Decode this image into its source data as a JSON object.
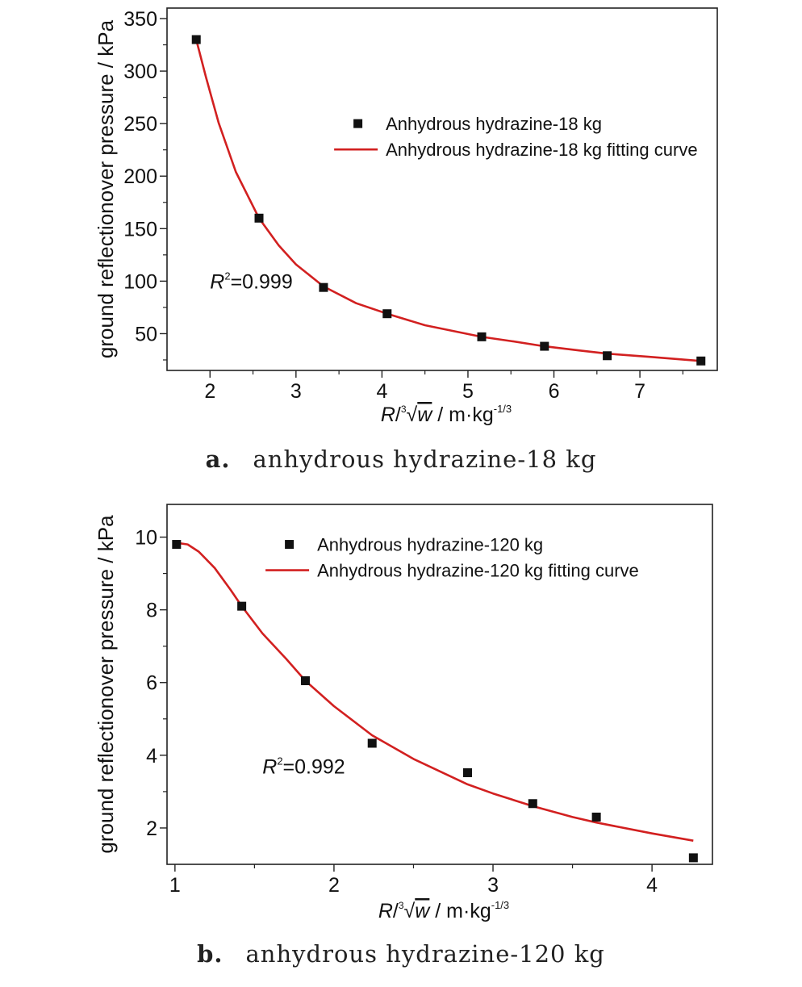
{
  "chart_data": [
    {
      "id": "a",
      "type": "scatter",
      "caption_tag": "a.",
      "caption_text": "anhydrous hydrazine-18 kg",
      "xlabel": "R/∛w / m·kg-1/3",
      "xlabel_parts": {
        "r": "R",
        "slash": "/",
        "root_index": "3",
        "w": "w",
        "unit": " / m·kg",
        "exp": "-1/3"
      },
      "ylabel": "ground reflectionover pressure / kPa",
      "xlim": [
        1.5,
        7.9
      ],
      "ylim": [
        15,
        360
      ],
      "xticks": [
        2,
        3,
        4,
        5,
        6,
        7
      ],
      "xticks_minor": [
        2.5,
        3.5,
        4.5,
        5.5,
        6.5,
        7.5
      ],
      "yticks": [
        50,
        100,
        150,
        200,
        250,
        300,
        350
      ],
      "yticks_minor": [
        25,
        75,
        125,
        175,
        225,
        275,
        325
      ],
      "annotation": {
        "r": "R",
        "sup": "2",
        "rest": "=0.999"
      },
      "annotation_pos": {
        "x": 2.0,
        "y": 93
      },
      "legend_pos": {
        "x": 3.5,
        "y": 250
      },
      "legend": {
        "points": "Anhydrous hydrazine-18 kg",
        "curve": "Anhydrous hydrazine-18 kg fitting curve"
      },
      "series": [
        {
          "name": "Anhydrous hydrazine-18 kg",
          "kind": "points",
          "x": [
            1.84,
            2.57,
            3.32,
            4.06,
            5.16,
            5.89,
            6.62,
            7.71
          ],
          "y": [
            330,
            160,
            94,
            69,
            47,
            38,
            29,
            24
          ]
        },
        {
          "name": "Anhydrous hydrazine-18 kg fitting curve",
          "kind": "line",
          "x": [
            1.84,
            1.95,
            2.1,
            2.3,
            2.57,
            2.8,
            3.0,
            3.32,
            3.7,
            4.06,
            4.5,
            5.16,
            5.5,
            5.89,
            6.3,
            6.62,
            7.1,
            7.71
          ],
          "y": [
            330,
            295,
            251,
            204,
            160,
            134,
            116,
            95,
            79,
            69,
            58,
            47,
            43,
            38,
            34,
            31,
            28,
            24
          ]
        }
      ],
      "colors": {
        "points": "#111111",
        "curve": "#d22020"
      }
    },
    {
      "id": "b",
      "type": "scatter",
      "caption_tag": "b.",
      "caption_text": "anhydrous hydrazine-120 kg",
      "xlabel": "R/∛w / m·kg-1/3",
      "xlabel_parts": {
        "r": "R",
        "slash": "/",
        "root_index": "3",
        "w": "w",
        "unit": " / m·kg",
        "exp": "-1/3"
      },
      "ylabel": "ground reflectionover pressure / kPa",
      "xlim": [
        0.95,
        4.38
      ],
      "ylim": [
        1.0,
        10.9
      ],
      "xticks": [
        1,
        2,
        3,
        4
      ],
      "xticks_minor": [
        1.5,
        2.5,
        3.5
      ],
      "yticks": [
        2,
        4,
        6,
        8,
        10
      ],
      "yticks_minor": [
        3,
        5,
        7,
        9
      ],
      "annotation": {
        "r": "R",
        "sup": "2",
        "rest": "=0.992"
      },
      "annotation_pos": {
        "x": 1.55,
        "y": 3.5
      },
      "legend_pos": {
        "x": 1.6,
        "y": 9.8
      },
      "legend": {
        "points": "Anhydrous hydrazine-120 kg",
        "curve": "Anhydrous hydrazine-120 kg fitting curve"
      },
      "series": [
        {
          "name": "Anhydrous hydrazine-120 kg",
          "kind": "points",
          "x": [
            1.01,
            1.42,
            1.82,
            2.24,
            2.84,
            3.25,
            3.65,
            4.26
          ],
          "y": [
            9.8,
            8.1,
            6.05,
            4.33,
            3.52,
            2.67,
            2.3,
            1.18
          ]
        },
        {
          "name": "Anhydrous hydrazine-120 kg fitting curve",
          "kind": "line",
          "x": [
            1.0,
            1.08,
            1.15,
            1.25,
            1.35,
            1.42,
            1.55,
            1.7,
            1.82,
            2.0,
            2.24,
            2.5,
            2.84,
            3.0,
            3.25,
            3.5,
            3.65,
            4.0,
            4.26
          ],
          "y": [
            9.85,
            9.8,
            9.6,
            9.15,
            8.55,
            8.1,
            7.35,
            6.65,
            6.05,
            5.35,
            4.55,
            3.9,
            3.2,
            2.95,
            2.6,
            2.3,
            2.15,
            1.85,
            1.65
          ]
        }
      ],
      "colors": {
        "points": "#111111",
        "curve": "#d22020"
      }
    }
  ]
}
